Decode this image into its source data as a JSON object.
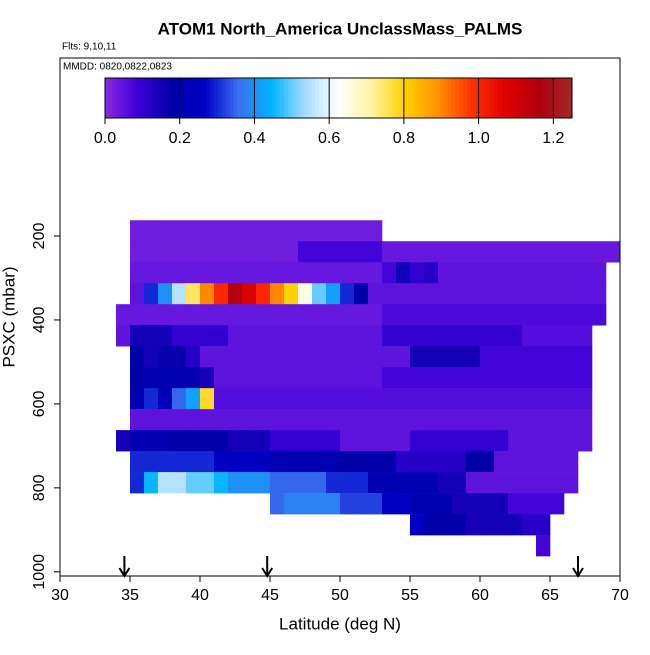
{
  "chart_data": {
    "type": "heatmap",
    "title": "ATOM1 North_America UnclassMass_PALMS",
    "subtitle": "Flts: 9,10,11",
    "annotation": "MMDD: 0820,0822,0823",
    "xlabel": "Latitude (deg N)",
    "ylabel": "PSXC (mbar)",
    "xlim": [
      30,
      70
    ],
    "xticks": [
      30,
      35,
      40,
      45,
      50,
      55,
      60,
      65,
      70
    ],
    "ylim": [
      1010,
      -224
    ],
    "yticks": [
      200,
      400,
      600,
      800,
      1000
    ],
    "x": [
      34.5,
      35.5,
      36.5,
      37.5,
      38.5,
      39.5,
      40.5,
      41.5,
      42.5,
      43.5,
      44.5,
      45.5,
      46.5,
      47.5,
      48.5,
      49.5,
      50.5,
      51.5,
      52.5,
      53.5,
      54.5,
      55.5,
      56.5,
      57.5,
      58.5,
      59.5,
      60.5,
      61.5,
      62.5,
      63.5,
      64.5,
      65.5,
      66.5,
      67.5,
      68.5,
      69.5
    ],
    "y": [
      187.5,
      237.5,
      287.5,
      337.5,
      387.5,
      437.5,
      487.5,
      537.5,
      587.5,
      637.5,
      687.5,
      737.5,
      787.5,
      837.5,
      887.5,
      937.5
    ],
    "z": [
      [
        null,
        0.03,
        0.03,
        0.03,
        0.03,
        0.03,
        0.03,
        0.03,
        0.03,
        0.03,
        0.03,
        0.03,
        0.03,
        0.03,
        0.03,
        0.03,
        0.03,
        0.03,
        0.03,
        null,
        null,
        null,
        null,
        null,
        null,
        null,
        null,
        null,
        null,
        null,
        null,
        null,
        null,
        null,
        null,
        null
      ],
      [
        null,
        0.03,
        0.03,
        0.03,
        0.03,
        0.03,
        0.03,
        0.03,
        0.03,
        0.03,
        0.03,
        0.03,
        0.03,
        0.08,
        0.08,
        0.08,
        0.08,
        0.08,
        0.08,
        0.04,
        0.04,
        0.04,
        0.04,
        0.04,
        0.04,
        0.04,
        0.04,
        0.04,
        0.04,
        0.04,
        0.04,
        0.04,
        0.04,
        0.04,
        0.04,
        0.04
      ],
      [
        null,
        0.04,
        0.04,
        0.04,
        0.04,
        0.04,
        0.04,
        0.04,
        0.04,
        0.04,
        0.04,
        0.04,
        0.04,
        0.04,
        0.04,
        0.04,
        0.04,
        0.04,
        0.04,
        0.08,
        0.15,
        0.1,
        0.12,
        0.05,
        0.05,
        0.05,
        0.05,
        0.05,
        0.05,
        0.05,
        0.05,
        0.05,
        0.05,
        0.05,
        0.05,
        null
      ],
      [
        null,
        0.05,
        0.3,
        0.4,
        0.55,
        0.75,
        0.9,
        1.0,
        1.15,
        1.08,
        1.0,
        0.9,
        0.8,
        0.65,
        0.5,
        0.42,
        0.3,
        0.18,
        0.05,
        0.05,
        0.05,
        0.05,
        0.05,
        0.05,
        0.05,
        0.05,
        0.05,
        0.05,
        0.05,
        0.05,
        0.05,
        0.05,
        0.05,
        0.05,
        0.05,
        null
      ],
      [
        0.04,
        0.04,
        0.04,
        0.04,
        0.04,
        0.04,
        0.04,
        0.04,
        0.04,
        0.04,
        0.04,
        0.04,
        0.04,
        0.04,
        0.04,
        0.04,
        0.04,
        0.04,
        0.04,
        0.07,
        0.07,
        0.07,
        0.07,
        0.07,
        0.07,
        0.07,
        0.07,
        0.07,
        0.07,
        0.07,
        0.07,
        0.07,
        0.07,
        0.07,
        0.07,
        null
      ],
      [
        0.05,
        0.15,
        0.15,
        0.15,
        0.1,
        0.1,
        0.1,
        0.1,
        0.05,
        0.05,
        0.05,
        0.05,
        0.05,
        0.05,
        0.05,
        0.05,
        0.05,
        0.05,
        0.05,
        0.1,
        0.1,
        0.1,
        0.1,
        0.1,
        0.1,
        0.1,
        0.1,
        0.1,
        0.1,
        0.06,
        0.06,
        0.06,
        0.06,
        0.06,
        null,
        null
      ],
      [
        null,
        0.18,
        0.15,
        0.17,
        0.17,
        0.12,
        0.05,
        0.05,
        0.05,
        0.05,
        0.05,
        0.05,
        0.05,
        0.05,
        0.05,
        0.05,
        0.05,
        0.05,
        0.05,
        0.05,
        0.05,
        0.15,
        0.15,
        0.15,
        0.15,
        0.15,
        0.08,
        0.08,
        0.08,
        0.08,
        0.08,
        0.08,
        0.08,
        0.08,
        null,
        null
      ],
      [
        null,
        0.18,
        0.2,
        0.2,
        0.2,
        0.2,
        0.15,
        0.05,
        0.05,
        0.05,
        0.05,
        0.05,
        0.05,
        0.05,
        0.05,
        0.05,
        0.05,
        0.05,
        0.05,
        0.08,
        0.08,
        0.08,
        0.08,
        0.08,
        0.08,
        0.08,
        0.08,
        0.08,
        0.08,
        0.08,
        0.08,
        0.08,
        0.08,
        0.08,
        null,
        null
      ],
      [
        null,
        0.2,
        0.3,
        0.22,
        0.35,
        0.42,
        0.78,
        0.06,
        0.06,
        0.06,
        0.06,
        0.06,
        0.06,
        0.06,
        0.06,
        0.06,
        0.06,
        0.06,
        0.06,
        0.06,
        0.06,
        0.06,
        0.06,
        0.06,
        0.06,
        0.06,
        0.06,
        0.06,
        0.06,
        0.06,
        0.06,
        0.06,
        0.06,
        0.06,
        null,
        null
      ],
      [
        null,
        0.05,
        0.05,
        0.05,
        0.05,
        0.05,
        0.05,
        0.05,
        0.05,
        0.05,
        0.05,
        0.05,
        0.05,
        0.05,
        0.05,
        0.05,
        0.05,
        0.05,
        0.05,
        0.05,
        0.05,
        0.05,
        0.05,
        0.05,
        0.05,
        0.05,
        0.05,
        0.05,
        0.05,
        0.05,
        0.05,
        0.05,
        0.05,
        0.05,
        null,
        null
      ],
      [
        0.15,
        0.2,
        0.2,
        0.2,
        0.18,
        0.18,
        0.18,
        0.18,
        0.15,
        0.15,
        0.15,
        0.1,
        0.1,
        0.1,
        0.1,
        0.1,
        0.05,
        0.05,
        0.05,
        0.05,
        0.05,
        0.1,
        0.1,
        0.1,
        0.1,
        0.1,
        0.1,
        0.1,
        0.05,
        0.05,
        0.05,
        0.05,
        0.05,
        0.05,
        null,
        null
      ],
      [
        null,
        0.3,
        0.3,
        0.3,
        0.3,
        0.3,
        0.3,
        0.25,
        0.25,
        0.25,
        0.25,
        0.2,
        0.2,
        0.2,
        0.2,
        0.2,
        0.18,
        0.18,
        0.18,
        0.18,
        0.12,
        0.12,
        0.12,
        0.12,
        0.12,
        0.18,
        0.18,
        0.05,
        0.05,
        0.05,
        0.05,
        0.05,
        0.05,
        null,
        null,
        null
      ],
      [
        null,
        0.3,
        0.45,
        0.55,
        0.55,
        0.5,
        0.5,
        0.45,
        0.4,
        0.4,
        0.4,
        0.35,
        0.35,
        0.35,
        0.35,
        0.3,
        0.3,
        0.3,
        0.2,
        0.2,
        0.2,
        0.2,
        0.2,
        0.15,
        0.15,
        0.05,
        0.05,
        0.05,
        0.05,
        0.05,
        0.05,
        0.05,
        0.05,
        null,
        null,
        null
      ],
      [
        null,
        null,
        null,
        null,
        null,
        null,
        null,
        null,
        null,
        null,
        null,
        0.35,
        0.38,
        0.38,
        0.38,
        0.38,
        0.32,
        0.32,
        0.32,
        0.25,
        0.25,
        0.2,
        0.2,
        0.2,
        0.15,
        0.15,
        0.15,
        0.15,
        0.08,
        0.08,
        0.08,
        0.08,
        null,
        null,
        null,
        null
      ],
      [
        null,
        null,
        null,
        null,
        null,
        null,
        null,
        null,
        null,
        null,
        null,
        null,
        null,
        null,
        null,
        null,
        null,
        null,
        null,
        null,
        null,
        0.25,
        0.18,
        0.18,
        0.18,
        0.15,
        0.15,
        0.15,
        0.15,
        0.12,
        0.12,
        null,
        null,
        null,
        null,
        null
      ],
      [
        null,
        null,
        null,
        null,
        null,
        null,
        null,
        null,
        null,
        null,
        null,
        null,
        null,
        null,
        null,
        null,
        null,
        null,
        null,
        null,
        null,
        null,
        null,
        null,
        null,
        null,
        null,
        null,
        null,
        null,
        0.08,
        null,
        null,
        null,
        null,
        null
      ]
    ],
    "colorbar_lim": [
      0,
      1.25
    ],
    "colorbar_ticks": [
      {
        "value": 0,
        "label": "0.0"
      },
      0.2,
      0.4,
      0.6,
      0.8,
      {
        "value": 1,
        "label": "1.0"
      },
      1.2
    ],
    "colormap": [
      "#8a2be2",
      "#3a00d8",
      "#0000a8",
      "#0000c8",
      "#3a70f0",
      "#00b4ff",
      "#a6dcff",
      "#ffffff",
      "#fff3a0",
      "#ffd000",
      "#ff9000",
      "#ff3000",
      "#e00000",
      "#b00010",
      "#a0282a"
    ],
    "arrows": [
      34.6,
      44.8,
      67.0
    ]
  }
}
